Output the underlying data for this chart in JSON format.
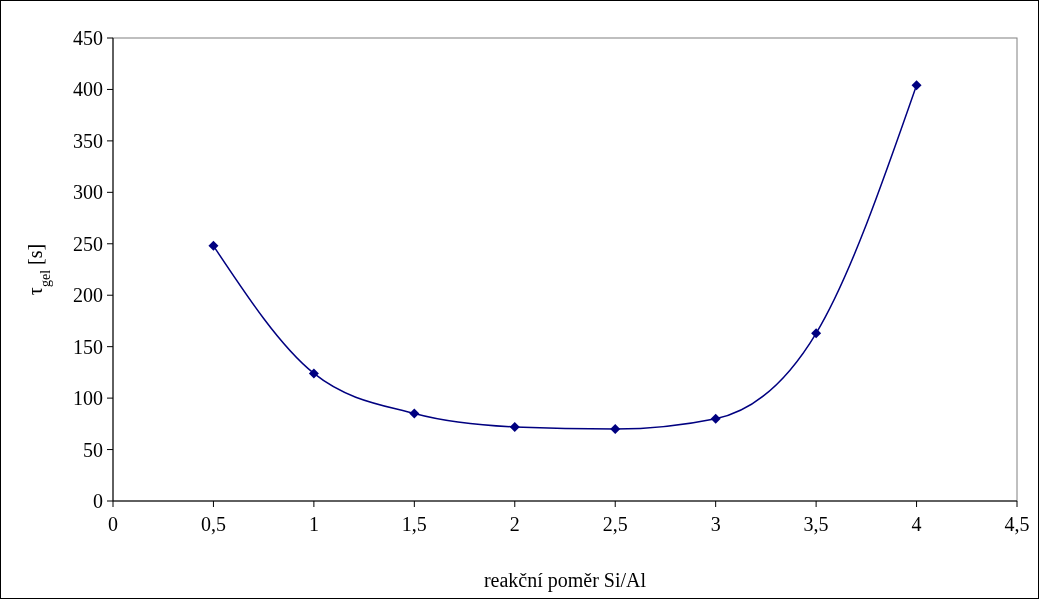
{
  "chart_data": {
    "type": "line",
    "xlabel": "reakční poměr Si/Al",
    "ylabel": "τ$_{gel}$ [s]",
    "x": [
      0.5,
      1,
      1.5,
      2,
      2.5,
      3,
      3.5,
      4
    ],
    "series": [
      {
        "color": "#000080",
        "values": [
          248,
          124,
          85,
          72,
          70,
          80,
          163,
          404
        ]
      }
    ],
    "marker": "diamond",
    "line_style": "solid",
    "grid": false,
    "xlim": [
      0,
      4.5
    ],
    "xticks": [
      0,
      {
        "value": 0.5,
        "label": "0,5"
      },
      1,
      {
        "value": 1.5,
        "label": "1,5"
      },
      2,
      {
        "value": 2.5,
        "label": "2,5"
      },
      3,
      {
        "value": 3.5,
        "label": "3,5"
      },
      4,
      {
        "value": 4.5,
        "label": "4,5"
      }
    ],
    "ylim": [
      0,
      450
    ],
    "yticks": [
      0,
      50,
      100,
      150,
      200,
      250,
      300,
      350,
      400,
      450
    ]
  }
}
